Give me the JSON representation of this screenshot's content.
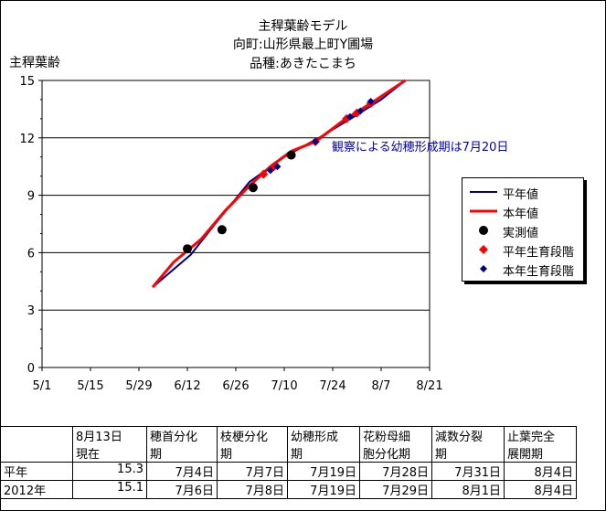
{
  "header": {
    "title": "主稈葉齢モデル",
    "location": "向町:山形県最上町Y圃場",
    "variety": "品種:あきたこまち"
  },
  "colors": {
    "normal": "#00008b",
    "this_year": "#ff0000",
    "observed": "#000000",
    "grid": "#000000"
  },
  "chart_data": {
    "type": "line",
    "ylabel": "主稈葉齢",
    "xlabel": "",
    "ylim": [
      0,
      15
    ],
    "yticks": [
      0,
      3,
      6,
      9,
      12,
      15
    ],
    "xticks": [
      "5/1",
      "5/15",
      "5/29",
      "6/12",
      "6/26",
      "7/10",
      "7/24",
      "8/7",
      "8/21"
    ],
    "xlim": [
      "5/1",
      "8/21"
    ],
    "annotation": "観察による幼穂形成期は7月20日",
    "series": [
      {
        "name": "平年値",
        "kind": "line",
        "points": [
          [
            "6/2",
            4.2
          ],
          [
            "6/13",
            5.9
          ],
          [
            "6/20",
            7.5
          ],
          [
            "6/30",
            9.7
          ],
          [
            "7/10",
            11.0
          ],
          [
            "7/20",
            12.0
          ],
          [
            "7/31",
            13.2
          ],
          [
            "8/7",
            14.0
          ],
          [
            "8/14",
            15.0
          ]
        ]
      },
      {
        "name": "本年値",
        "kind": "line",
        "points": [
          [
            "6/2",
            4.2
          ],
          [
            "6/8",
            5.5
          ],
          [
            "6/16",
            6.7
          ],
          [
            "6/23",
            8.2
          ],
          [
            "6/30",
            9.5
          ],
          [
            "7/6",
            10.5
          ],
          [
            "7/12",
            11.3
          ],
          [
            "7/19",
            11.8
          ],
          [
            "7/27",
            12.9
          ],
          [
            "8/4",
            13.8
          ],
          [
            "8/14",
            15.0
          ]
        ]
      },
      {
        "name": "実測値",
        "kind": "point",
        "points": [
          [
            "6/12",
            6.2
          ],
          [
            "6/22",
            7.2
          ],
          [
            "7/1",
            9.4
          ],
          [
            "7/12",
            11.1
          ]
        ]
      },
      {
        "name": "平年生育段階",
        "kind": "point",
        "points": [
          [
            "7/4",
            10.1
          ],
          [
            "7/7",
            10.5
          ],
          [
            "7/19",
            11.8
          ],
          [
            "7/28",
            13.0
          ],
          [
            "7/31",
            13.3
          ],
          [
            "8/4",
            13.8
          ]
        ]
      },
      {
        "name": "本年生育段階",
        "kind": "point",
        "points": [
          [
            "7/6",
            10.3
          ],
          [
            "7/8",
            10.5
          ],
          [
            "7/19",
            11.8
          ],
          [
            "7/29",
            13.1
          ],
          [
            "8/1",
            13.4
          ],
          [
            "8/4",
            13.9
          ]
        ]
      }
    ]
  },
  "table": {
    "headers": [
      "",
      "8月13日\n現在",
      "穂首分化\n期",
      "枝梗分化\n期",
      "幼穂形成\n期",
      "花粉母細\n胞分化期",
      "減数分裂\n期",
      "止葉完全\n展開期"
    ],
    "rows": [
      [
        "平年",
        "15.3",
        "7月4日",
        "7月7日",
        "7月19日",
        "7月28日",
        "7月31日",
        "8月4日"
      ],
      [
        "2012年",
        "15.1",
        "7月6日",
        "7月8日",
        "7月19日",
        "7月29日",
        "8月1日",
        "8月4日"
      ]
    ]
  }
}
